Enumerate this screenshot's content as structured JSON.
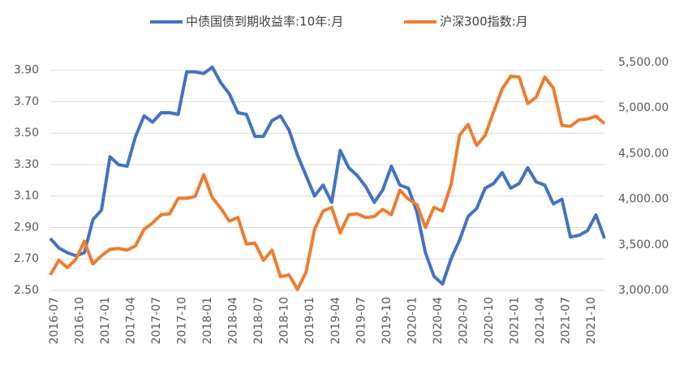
{
  "chart_data": {
    "type": "line",
    "categories": [
      "2016-07",
      null,
      null,
      "2016-10",
      null,
      null,
      "2017-01",
      null,
      null,
      "2017-04",
      null,
      null,
      "2017-07",
      null,
      null,
      "2017-10",
      null,
      null,
      "2018-01",
      null,
      null,
      "2018-04",
      null,
      null,
      "2018-07",
      null,
      null,
      "2018-10",
      null,
      null,
      "2019-01",
      null,
      null,
      "2019-04",
      null,
      null,
      "2019-07",
      null,
      null,
      "2019-10",
      null,
      null,
      "2020-01",
      null,
      null,
      "2020-04",
      null,
      null,
      "2020-07",
      null,
      null,
      "2020-10",
      null,
      null,
      "2021-01",
      null,
      null,
      "2021-04",
      null,
      null,
      "2021-07",
      null,
      null,
      "2021-10",
      null,
      null
    ],
    "series": [
      {
        "name": "中债国债到期收益率:10年:月",
        "color": "#4472c4",
        "values": [
          2.83,
          2.77,
          2.74,
          2.72,
          2.74,
          2.95,
          3.01,
          3.35,
          3.3,
          3.29,
          3.48,
          3.61,
          3.57,
          3.63,
          3.63,
          3.62,
          3.89,
          3.89,
          3.88,
          3.92,
          3.82,
          3.75,
          3.63,
          3.62,
          3.48,
          3.48,
          3.58,
          3.61,
          3.52,
          3.36,
          3.23,
          3.1,
          3.17,
          3.06,
          3.39,
          3.28,
          3.23,
          3.16,
          3.06,
          3.14,
          3.29,
          3.17,
          3.15,
          3.0,
          2.74,
          2.59,
          2.54,
          2.7,
          2.82,
          2.97,
          3.02,
          3.15,
          3.18,
          3.25,
          3.15,
          3.18,
          3.28,
          3.19,
          3.17,
          3.05,
          3.08,
          2.84,
          2.85,
          2.88,
          2.98,
          2.83
        ]
      },
      {
        "name": "沪深300指数:月",
        "color": "#ed7d31",
        "axis": "y2",
        "values": [
          3170,
          3330,
          3250,
          3340,
          3540,
          3290,
          3380,
          3450,
          3460,
          3440,
          3490,
          3670,
          3740,
          3830,
          3840,
          4010,
          4010,
          4030,
          4270,
          4020,
          3900,
          3760,
          3800,
          3510,
          3520,
          3330,
          3440,
          3150,
          3170,
          3010,
          3200,
          3670,
          3870,
          3910,
          3630,
          3830,
          3840,
          3800,
          3810,
          3890,
          3830,
          4100,
          4000,
          3940,
          3690,
          3910,
          3870,
          4160,
          4700,
          4820,
          4590,
          4700,
          4960,
          5210,
          5350,
          5340,
          5050,
          5120,
          5340,
          5220,
          4810,
          4800,
          4870,
          4880,
          4910,
          4830
        ]
      }
    ],
    "ylim": [
      2.5,
      3.95
    ],
    "yticks": [
      {
        "value": 2.5,
        "label": "2.50"
      },
      {
        "value": 2.7,
        "label": "2.70"
      },
      {
        "value": 2.9,
        "label": "2.90"
      },
      {
        "value": 3.1,
        "label": "3.10"
      },
      {
        "value": 3.3,
        "label": "3.30"
      },
      {
        "value": 3.5,
        "label": "3.50"
      },
      {
        "value": 3.7,
        "label": "3.70"
      },
      {
        "value": 3.9,
        "label": "3.90"
      }
    ],
    "y2lim": [
      3000,
      5500
    ],
    "y2ticks": [
      {
        "value": 3000,
        "label": "3,000.00"
      },
      {
        "value": 3500,
        "label": "3,500.00"
      },
      {
        "value": 4000,
        "label": "4,000.00"
      },
      {
        "value": 4500,
        "label": "4,500.00"
      },
      {
        "value": 5000,
        "label": "5,000.00"
      },
      {
        "value": 5500,
        "label": "5,500.00"
      }
    ],
    "grid": true,
    "legend": "top"
  }
}
